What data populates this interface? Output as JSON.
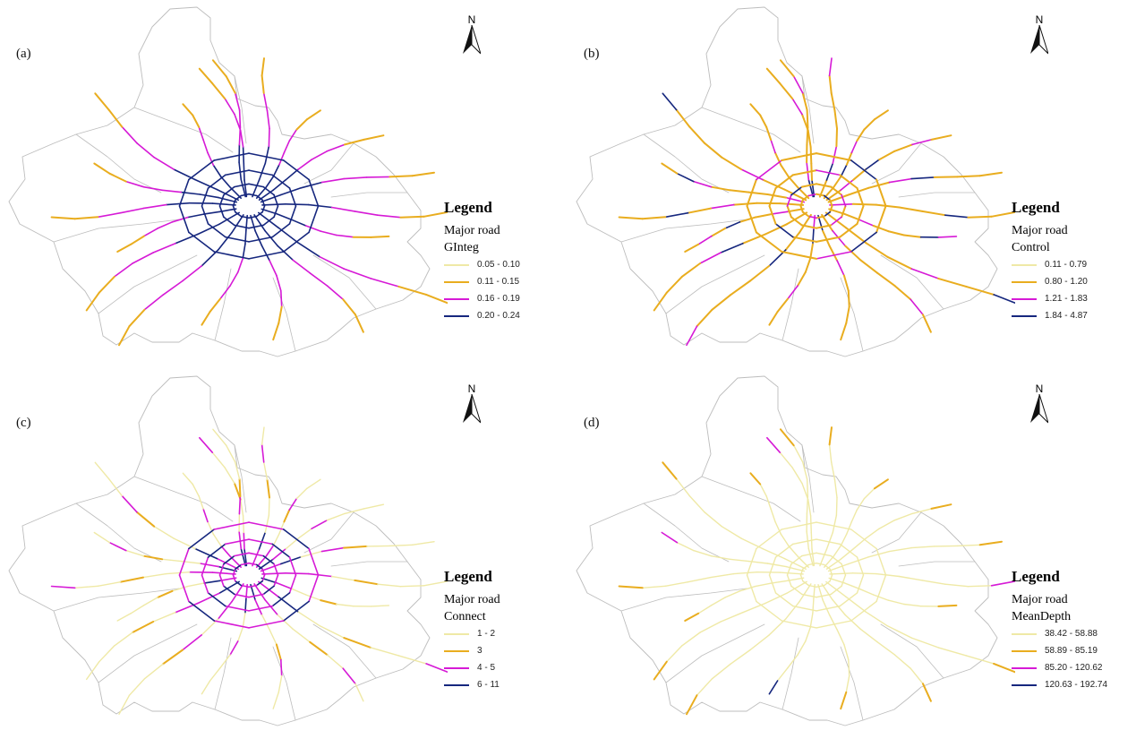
{
  "colors": {
    "boundary": "#bdbdbd",
    "class1": "#efe9a6",
    "class2": "#e9ad1f",
    "class3": "#d61ad6",
    "class4": "#16277e"
  },
  "north_label": "N",
  "panels": [
    {
      "label": "(a)",
      "legend": {
        "title": "Legend",
        "layer": "Major road",
        "field": "GInteg",
        "classes": [
          "0.05 - 0.10",
          "0.11 - 0.15",
          "0.16 - 0.19",
          "0.20 - 0.24"
        ]
      }
    },
    {
      "label": "(b)",
      "legend": {
        "title": "Legend",
        "layer": "Major road",
        "field": "Control",
        "classes": [
          "0.11 - 0.79",
          "0.80 - 1.20",
          "1.21 - 1.83",
          "1.84 - 4.87"
        ]
      }
    },
    {
      "label": "(c)",
      "legend": {
        "title": "Legend",
        "layer": "Major road",
        "field": "Connect",
        "classes": [
          "1 - 2",
          "3",
          "4 - 5",
          "6 - 11"
        ]
      }
    },
    {
      "label": "(d)",
      "legend": {
        "title": "Legend",
        "layer": "Major road",
        "field": "MeanDepth",
        "classes": [
          "38.42 - 58.88",
          "58.89 - 85.19",
          "85.20 - 120.62",
          "120.63 - 192.74"
        ]
      }
    }
  ]
}
